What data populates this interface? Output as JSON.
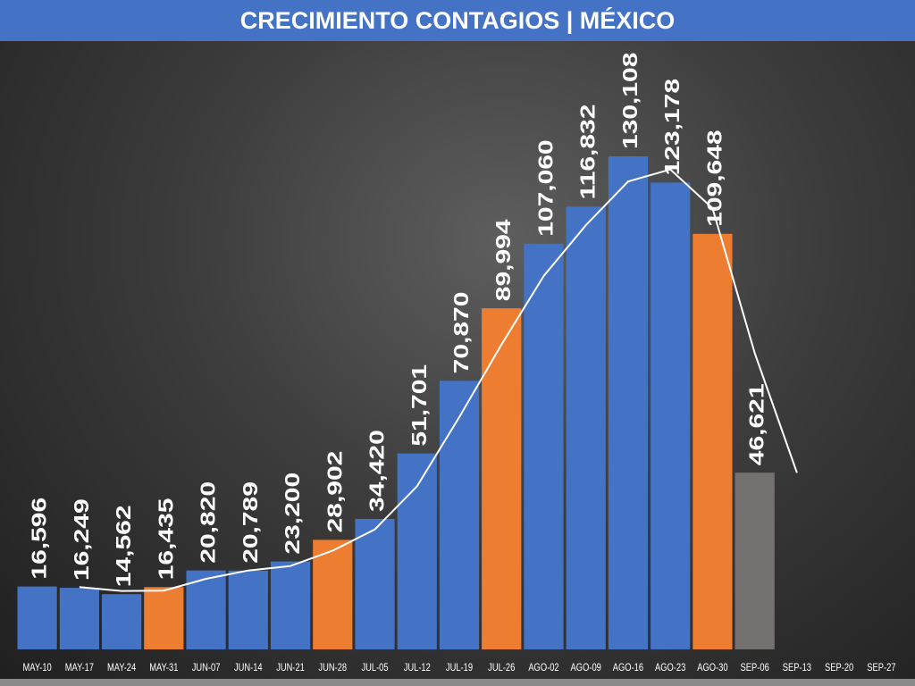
{
  "chart_data": {
    "type": "bar",
    "title": "CRECIMIENTO CONTAGIOS | MÉXICO",
    "categories": [
      "MAY-10",
      "MAY-17",
      "MAY-24",
      "MAY-31",
      "JUN-07",
      "JUN-14",
      "JUN-21",
      "JUN-28",
      "JUL-05",
      "JUL-12",
      "JUL-19",
      "JUL-26",
      "AGO-02",
      "AGO-09",
      "AGO-16",
      "AGO-23",
      "AGO-30",
      "SEP-06",
      "SEP-13",
      "SEP-20",
      "SEP-27"
    ],
    "values": [
      16596,
      16249,
      14562,
      16435,
      20820,
      20789,
      23200,
      28902,
      34420,
      51701,
      70870,
      89994,
      107060,
      116832,
      130108,
      123178,
      109648,
      46621,
      null,
      null,
      null
    ],
    "data_labels": [
      "16,596",
      "16,249",
      "14,562",
      "16,435",
      "20,820",
      "20,789",
      "23,200",
      "28,902",
      "34,420",
      "51,701",
      "70,870",
      "89,994",
      "107,060",
      "116,832",
      "130,108",
      "123,178",
      "109,648",
      "46,621",
      "",
      "",
      ""
    ],
    "bar_colors": [
      "#4472C4",
      "#4472C4",
      "#4472C4",
      "#ED7D31",
      "#4472C4",
      "#4472C4",
      "#4472C4",
      "#ED7D31",
      "#4472C4",
      "#4472C4",
      "#4472C4",
      "#ED7D31",
      "#4472C4",
      "#4472C4",
      "#4472C4",
      "#4472C4",
      "#ED7D31",
      "#767171",
      null,
      null,
      null
    ],
    "trend_line": {
      "color": "#FFFFFF",
      "values": [
        null,
        16422,
        15405,
        15498,
        18627,
        20804,
        21994,
        26051,
        31661,
        43060,
        61285,
        80432,
        98527,
        111946,
        123470,
        126643,
        116413,
        78134,
        46600,
        null,
        null
      ]
    },
    "ylim": [
      0,
      135000
    ],
    "grid": false,
    "legend": "none",
    "xlabel": "",
    "ylabel": ""
  }
}
